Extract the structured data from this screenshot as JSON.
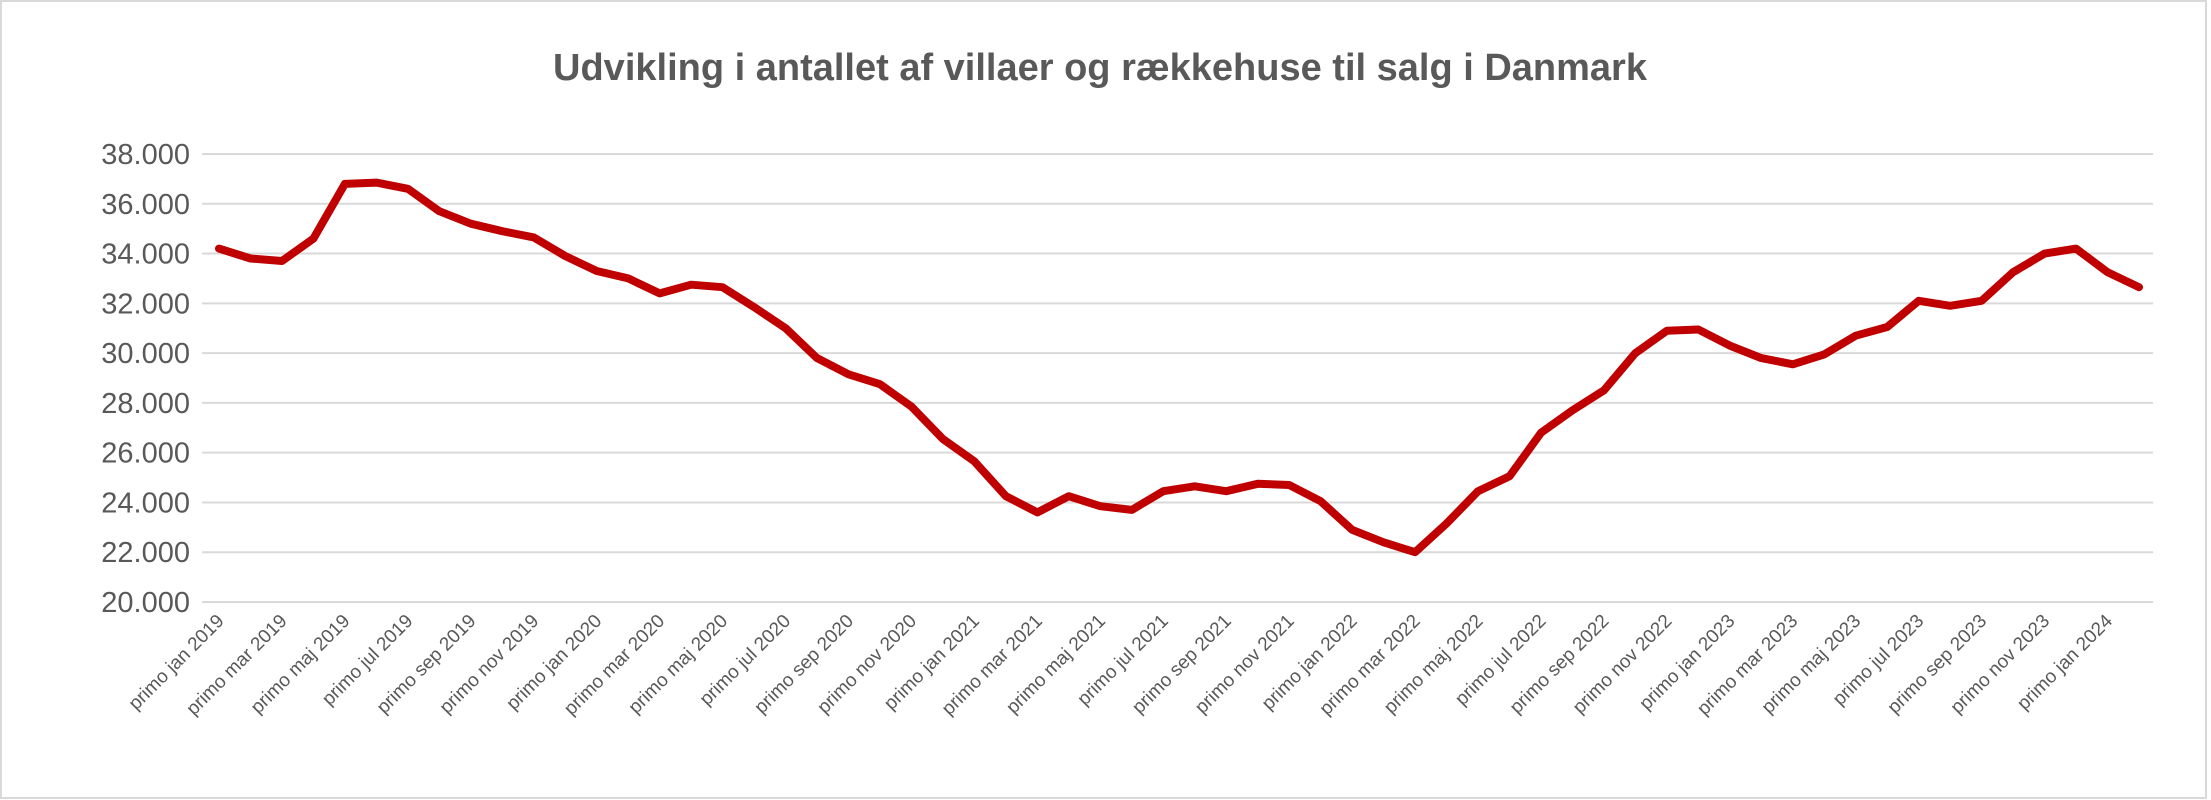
{
  "chart_data": {
    "type": "line",
    "title": "Udvikling i antallet af villaer og rækkehuse til salg i Danmark",
    "xlabel": "",
    "ylabel": "",
    "ylim": [
      20000,
      38000
    ],
    "ytick_step": 2000,
    "ytick_labels": [
      "20.000",
      "22.000",
      "24.000",
      "26.000",
      "28.000",
      "30.000",
      "32.000",
      "34.000",
      "36.000",
      "38.000"
    ],
    "grid": true,
    "legend": "none",
    "x_tick_labels": [
      "primo jan 2019",
      "primo mar 2019",
      "primo maj 2019",
      "primo jul 2019",
      "primo sep 2019",
      "primo nov 2019",
      "primo jan 2020",
      "primo mar 2020",
      "primo maj 2020",
      "primo jul 2020",
      "primo sep 2020",
      "primo nov 2020",
      "primo jan 2021",
      "primo mar 2021",
      "primo maj 2021",
      "primo jul 2021",
      "primo sep 2021",
      "primo nov 2021",
      "primo jan 2022",
      "primo mar 2022",
      "primo maj 2022",
      "primo jul 2022",
      "primo sep 2022",
      "primo nov 2022",
      "primo jan 2023",
      "primo mar 2023",
      "primo maj 2023",
      "primo jul 2023",
      "primo sep 2023",
      "primo nov 2023",
      "primo jan 2024"
    ],
    "series": [
      {
        "name": "Villaer og rækkehuse til salg",
        "color": "#C00000",
        "values": [
          34200,
          33800,
          33700,
          34600,
          36800,
          36850,
          36600,
          35700,
          35200,
          34900,
          34650,
          33900,
          33300,
          33000,
          32400,
          32750,
          32650,
          31850,
          31000,
          29800,
          29150,
          28750,
          27850,
          26550,
          25650,
          24250,
          23600,
          24250,
          23850,
          23700,
          24450,
          24650,
          24450,
          24750,
          24700,
          24050,
          22900,
          22400,
          22000,
          23150,
          24450,
          25050,
          26800,
          27700,
          28500,
          30000,
          30900,
          30950,
          30300,
          29800,
          29550,
          29950,
          30700,
          31050,
          32100,
          31900,
          32100,
          33250,
          34000,
          34200,
          33250,
          32650
        ]
      }
    ]
  }
}
